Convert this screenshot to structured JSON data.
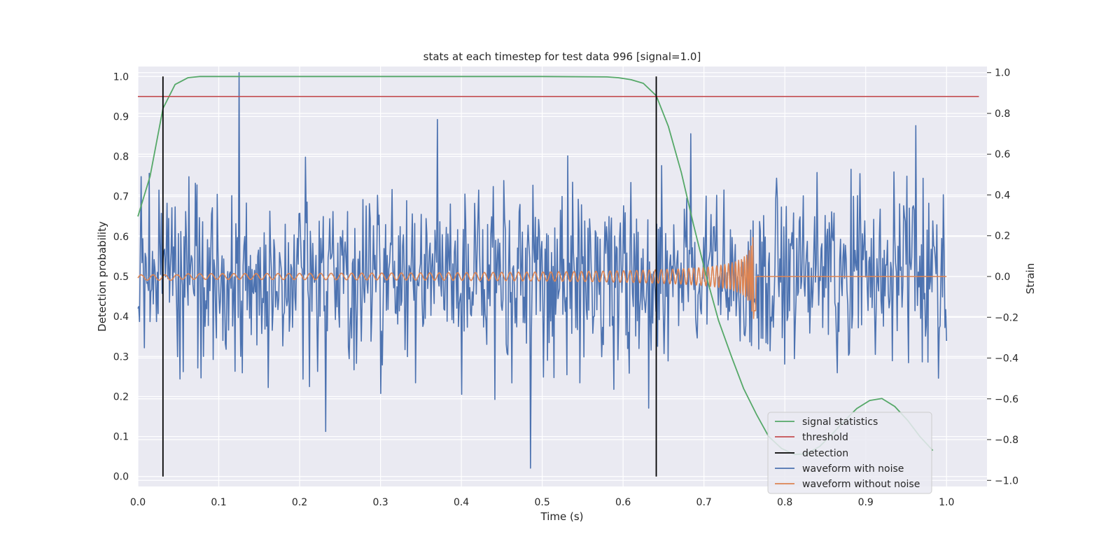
{
  "chart_data": {
    "type": "line",
    "title": "stats at each timestep for test data 996 [signal=1.0]",
    "xlabel": "Time (s)",
    "ylabel": "Detection probability",
    "y2label": "Strain",
    "xlim": [
      0.0,
      1.05
    ],
    "ylim": [
      -0.025,
      1.025
    ],
    "y2lim": [
      -1.03,
      1.03
    ],
    "xticks": [
      "0.0",
      "0.1",
      "0.2",
      "0.3",
      "0.4",
      "0.5",
      "0.6",
      "0.7",
      "0.8",
      "0.9",
      "1.0"
    ],
    "yticks": [
      "0.0",
      "0.1",
      "0.2",
      "0.3",
      "0.4",
      "0.5",
      "0.6",
      "0.7",
      "0.8",
      "0.9",
      "1.0"
    ],
    "y2ticks": [
      "−1.0",
      "−0.8",
      "−0.6",
      "−0.4",
      "−0.2",
      "0.0",
      "0.2",
      "0.4",
      "0.6",
      "0.8",
      "1.0"
    ],
    "grid": true,
    "legend_position": "bottom-right",
    "series": [
      {
        "name": "signal statistics",
        "axis": "left",
        "color": "#55a868",
        "x": [
          0.0,
          0.015,
          0.031,
          0.046,
          0.062,
          0.077,
          0.1,
          0.2,
          0.3,
          0.4,
          0.5,
          0.58,
          0.594,
          0.61,
          0.625,
          0.641,
          0.656,
          0.672,
          0.687,
          0.703,
          0.718,
          0.734,
          0.749,
          0.765,
          0.78,
          0.796,
          0.812,
          0.827,
          0.843,
          0.858,
          0.874,
          0.889,
          0.905,
          0.92,
          0.936,
          0.952,
          0.967,
          0.983
        ],
        "y": [
          0.65,
          0.75,
          0.92,
          0.98,
          0.997,
          1.0,
          1.0,
          1.0,
          1.0,
          1.0,
          1.0,
          0.999,
          0.997,
          0.992,
          0.983,
          0.952,
          0.875,
          0.76,
          0.63,
          0.5,
          0.39,
          0.3,
          0.22,
          0.155,
          0.1,
          0.07,
          0.055,
          0.057,
          0.075,
          0.105,
          0.14,
          0.17,
          0.19,
          0.195,
          0.175,
          0.14,
          0.1,
          0.065
        ]
      },
      {
        "name": "threshold",
        "axis": "left",
        "color": "#c44e52",
        "x": [
          0.0,
          1.04
        ],
        "y": [
          0.95,
          0.95
        ]
      },
      {
        "name": "detection",
        "axis": "left",
        "color": "#000000",
        "segments": [
          {
            "x": 0.031,
            "y0": 0.0,
            "y1": 1.0
          },
          {
            "x": 0.641,
            "y0": 0.0,
            "y1": 1.0
          }
        ]
      },
      {
        "name": "waveform with noise",
        "axis": "right",
        "color": "#4c72b0",
        "n_points": 1000,
        "x_range": [
          0.0,
          1.0
        ],
        "peaks": [
          {
            "x": 0.125,
            "y": 1.0
          },
          {
            "x": 0.485,
            "y": -0.94
          },
          {
            "x": 0.232,
            "y": -0.76
          },
          {
            "x": 0.37,
            "y": 0.77
          },
          {
            "x": 0.962,
            "y": 0.74
          },
          {
            "x": 0.004,
            "y": 0.49
          }
        ],
        "stddev_estimate": 0.22,
        "range": [
          -0.94,
          1.0
        ]
      },
      {
        "name": "waveform without noise",
        "axis": "right",
        "color": "#dd8452",
        "description_points": [
          {
            "x": 0.0,
            "y": -0.005
          },
          {
            "x": 0.764,
            "y": 0.0
          },
          {
            "x": 1.0,
            "y": 0.0
          }
        ],
        "chirp_end": 0.764,
        "max_amplitude": 0.21
      }
    ]
  },
  "legend": {
    "items": [
      {
        "label": "signal statistics",
        "color": "#55a868"
      },
      {
        "label": "threshold",
        "color": "#c44e52"
      },
      {
        "label": "detection",
        "color": "#000000"
      },
      {
        "label": "waveform with noise",
        "color": "#4c72b0"
      },
      {
        "label": "waveform without noise",
        "color": "#dd8452"
      }
    ]
  },
  "colors": {
    "plot_background": "#eaeaf2",
    "grid": "#ffffff"
  }
}
